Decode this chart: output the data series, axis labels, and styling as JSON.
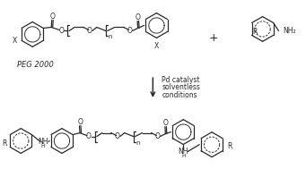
{
  "background_color": "#ffffff",
  "line_color": "#2a2a2a",
  "fig_width": 3.41,
  "fig_height": 1.89,
  "dpi": 100,
  "peg_label": "PEG 2000",
  "reaction_line1": "Pd catalyst",
  "reaction_line2": "solventless",
  "reaction_line3": "conditions",
  "plus_sign": "+",
  "subscript_n": "n",
  "label_X": "X",
  "label_R": "R",
  "label_O": "O",
  "label_NH2": "NH₂",
  "label_NH": "NH",
  "label_H": "H"
}
